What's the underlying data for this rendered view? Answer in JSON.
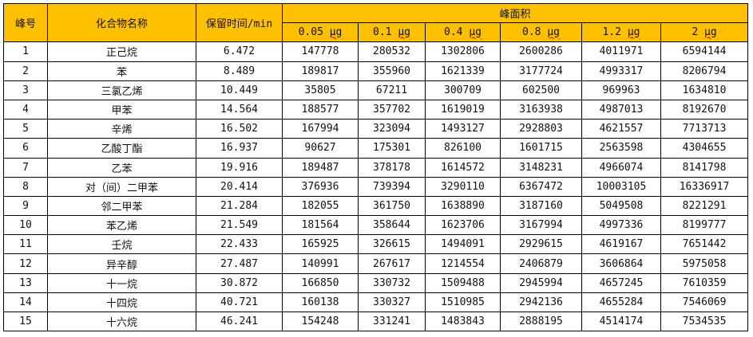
{
  "header": {
    "peak_no": "峰号",
    "compound": "化合物名称",
    "retention": "保留时间/min",
    "peak_area": "峰面积",
    "amounts": [
      {
        "value": "0.05",
        "unit": "μg"
      },
      {
        "value": "0.1",
        "unit": "μg"
      },
      {
        "value": "0.4",
        "unit": "μg"
      },
      {
        "value": "0.8",
        "unit": "μg"
      },
      {
        "value": "1.2",
        "unit": "μg"
      },
      {
        "value": "2",
        "unit": "μg"
      }
    ]
  },
  "header_color": "#FFC000",
  "rows": [
    {
      "no": "1",
      "name": "正己烷",
      "rt": "6.472",
      "areas": [
        "147778",
        "280532",
        "1302806",
        "2600286",
        "4011971",
        "6594144"
      ]
    },
    {
      "no": "2",
      "name": "苯",
      "rt": "8.489",
      "areas": [
        "189817",
        "355960",
        "1621339",
        "3177724",
        "4993317",
        "8206794"
      ]
    },
    {
      "no": "3",
      "name": "三氯乙烯",
      "rt": "10.449",
      "areas": [
        "35805",
        "67211",
        "300709",
        "602500",
        "969963",
        "1634810"
      ]
    },
    {
      "no": "4",
      "name": "甲苯",
      "rt": "14.564",
      "areas": [
        "188577",
        "357702",
        "1619019",
        "3163938",
        "4987013",
        "8192670"
      ]
    },
    {
      "no": "5",
      "name": "辛烯",
      "rt": "16.502",
      "areas": [
        "167994",
        "323094",
        "1493127",
        "2928803",
        "4621557",
        "7713713"
      ]
    },
    {
      "no": "6",
      "name": "乙酸丁酯",
      "rt": "16.937",
      "areas": [
        "90627",
        "175301",
        "826100",
        "1601715",
        "2563598",
        "4304655"
      ]
    },
    {
      "no": "7",
      "name": "乙苯",
      "rt": "19.916",
      "areas": [
        "189487",
        "378178",
        "1614572",
        "3148231",
        "4966074",
        "8141798"
      ]
    },
    {
      "no": "8",
      "name": "对（间）二甲苯",
      "rt": "20.414",
      "areas": [
        "376936",
        "739394",
        "3290110",
        "6367472",
        "10003105",
        "16336917"
      ]
    },
    {
      "no": "9",
      "name": "邻二甲苯",
      "rt": "21.284",
      "areas": [
        "182055",
        "361750",
        "1638890",
        "3187160",
        "5049508",
        "8221291"
      ]
    },
    {
      "no": "10",
      "name": "苯乙烯",
      "rt": "21.549",
      "areas": [
        "181564",
        "358644",
        "1623706",
        "3167994",
        "4997336",
        "8199777"
      ]
    },
    {
      "no": "11",
      "name": "壬烷",
      "rt": "22.433",
      "areas": [
        "165925",
        "326615",
        "1494091",
        "2929615",
        "4619167",
        "7651442"
      ]
    },
    {
      "no": "12",
      "name": "异辛醇",
      "rt": "27.487",
      "areas": [
        "140991",
        "267617",
        "1214554",
        "2406879",
        "3606864",
        "5975058"
      ]
    },
    {
      "no": "13",
      "name": "十一烷",
      "rt": "30.872",
      "areas": [
        "166850",
        "330732",
        "1509488",
        "2945994",
        "4657245",
        "7610359"
      ]
    },
    {
      "no": "14",
      "name": "十四烷",
      "rt": "40.721",
      "areas": [
        "160138",
        "330327",
        "1510985",
        "2942136",
        "4655284",
        "7546069"
      ]
    },
    {
      "no": "15",
      "name": "十六烷",
      "rt": "46.241",
      "areas": [
        "154248",
        "331241",
        "1483843",
        "2888195",
        "4514174",
        "7534535"
      ]
    }
  ]
}
